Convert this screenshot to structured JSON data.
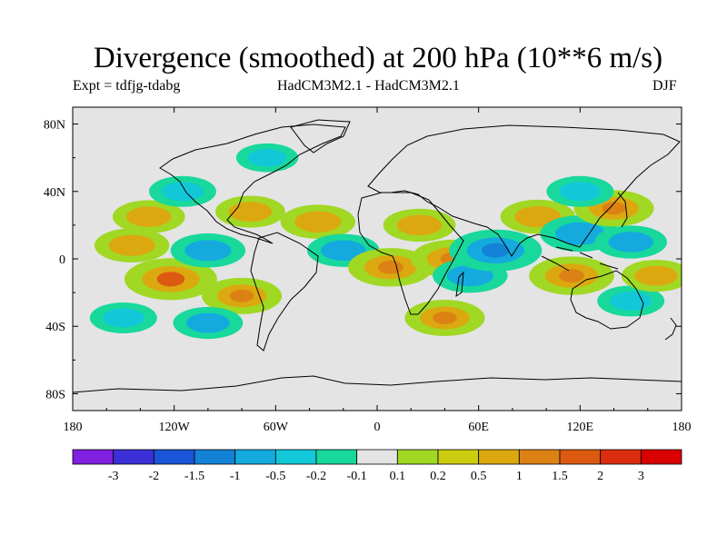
{
  "title": "Divergence (smoothed) at 200 hPa (10**6 m/s)",
  "subtitle_left": "Expt = tdfjg-tdabg",
  "subtitle_center": "HadCM3M2.1 - HadCM3M2.1",
  "subtitle_right": "DJF",
  "chart_data": {
    "type": "heatmap",
    "field": "200 hPa divergence (smoothed) difference, DJF",
    "lon_range": [
      -180,
      180
    ],
    "lat_range": [
      -90,
      90
    ],
    "x_ticks": [
      {
        "value": -180,
        "label": "180"
      },
      {
        "value": -120,
        "label": "120W"
      },
      {
        "value": -60,
        "label": "60W"
      },
      {
        "value": 0,
        "label": "0"
      },
      {
        "value": 60,
        "label": "60E"
      },
      {
        "value": 120,
        "label": "120E"
      },
      {
        "value": 180,
        "label": "180"
      }
    ],
    "y_ticks": [
      {
        "value": 80,
        "label": "80N"
      },
      {
        "value": 40,
        "label": "40N"
      },
      {
        "value": 0,
        "label": "0"
      },
      {
        "value": -40,
        "label": "40S"
      },
      {
        "value": -80,
        "label": "80S"
      }
    ],
    "colorbar": {
      "labels": [
        "-3",
        "-2",
        "-1.5",
        "-1",
        "-0.5",
        "-0.2",
        "-0.1",
        "0.1",
        "0.2",
        "0.5",
        "1",
        "1.5",
        "2",
        "3"
      ],
      "colors": [
        "#7f1fe0",
        "#3c2fd8",
        "#1a55d8",
        "#1482d6",
        "#14aade",
        "#12c8d8",
        "#18d89c",
        "#e4e4e4",
        "#a0d824",
        "#cccc10",
        "#dca810",
        "#dc8214",
        "#dc5a10",
        "#dc2c10",
        "#d80000"
      ]
    },
    "anomalies": [
      {
        "lon": -145,
        "lat": 8,
        "value": 0.8
      },
      {
        "lon": -122,
        "lat": -12,
        "value": 1.5
      },
      {
        "lon": -100,
        "lat": 5,
        "value": -0.8
      },
      {
        "lon": -80,
        "lat": -22,
        "value": 1.0
      },
      {
        "lon": -100,
        "lat": -38,
        "value": -0.6
      },
      {
        "lon": -150,
        "lat": -35,
        "value": -0.5
      },
      {
        "lon": -135,
        "lat": 25,
        "value": 0.7
      },
      {
        "lon": -115,
        "lat": 40,
        "value": -0.5
      },
      {
        "lon": -75,
        "lat": 28,
        "value": 0.6
      },
      {
        "lon": -35,
        "lat": 22,
        "value": 0.8
      },
      {
        "lon": -20,
        "lat": 5,
        "value": -0.7
      },
      {
        "lon": 8,
        "lat": -5,
        "value": 1.2
      },
      {
        "lon": 25,
        "lat": 20,
        "value": 0.7
      },
      {
        "lon": 45,
        "lat": 0,
        "value": 1.2
      },
      {
        "lon": 55,
        "lat": -10,
        "value": -0.8
      },
      {
        "lon": 70,
        "lat": 5,
        "value": -1.5
      },
      {
        "lon": 40,
        "lat": -35,
        "value": 1.0
      },
      {
        "lon": 95,
        "lat": 25,
        "value": 0.8
      },
      {
        "lon": 120,
        "lat": 15,
        "value": -1.0
      },
      {
        "lon": 115,
        "lat": -10,
        "value": 1.2
      },
      {
        "lon": 140,
        "lat": 30,
        "value": 1.0
      },
      {
        "lon": 150,
        "lat": 10,
        "value": -0.7
      },
      {
        "lon": 150,
        "lat": -25,
        "value": -0.5
      },
      {
        "lon": 165,
        "lat": -10,
        "value": 0.6
      },
      {
        "lon": -65,
        "lat": 60,
        "value": -0.3
      },
      {
        "lon": 120,
        "lat": 40,
        "value": -0.5
      }
    ]
  }
}
